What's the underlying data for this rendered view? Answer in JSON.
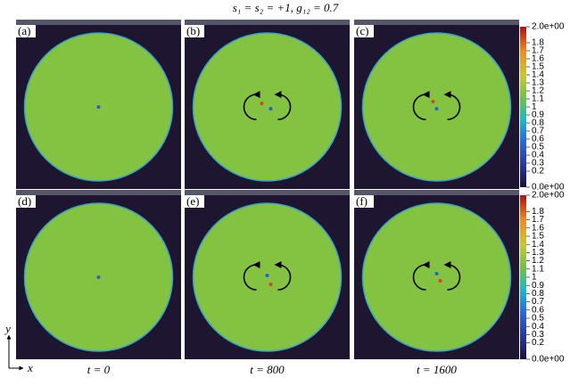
{
  "title": "s₁ = s₂ = +1,    g₁₂ = 0.7",
  "panels": [
    {
      "label": "(a)"
    },
    {
      "label": "(b)"
    },
    {
      "label": "(c)"
    },
    {
      "label": "(d)"
    },
    {
      "label": "(e)"
    },
    {
      "label": "(f)"
    }
  ],
  "time_labels": [
    "t = 0",
    "t = 800",
    "t = 1600"
  ],
  "axes": {
    "x": "x",
    "y": "y"
  },
  "colorbar": {
    "ticks": [
      {
        "value": 2,
        "label": "2.0e+00"
      },
      1.8,
      1.7,
      1.6,
      1.5,
      1.4,
      1.3,
      1.2,
      1.1,
      1,
      0.9,
      0.8,
      0.7,
      0.6,
      0.5,
      0.4,
      0.3,
      0.2,
      {
        "value": 0,
        "label": "0.0e+00"
      }
    ],
    "range": [
      0,
      2
    ]
  }
}
